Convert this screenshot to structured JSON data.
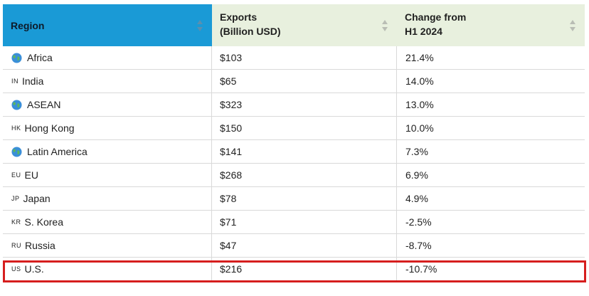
{
  "header": {
    "region_label": "Region",
    "exports_label_line1": "Exports",
    "exports_label_line2": "(Billion USD)",
    "change_label_line1": "Change from",
    "change_label_line2": "H1 2024"
  },
  "rows": [
    {
      "icon": "globe-icon",
      "code": "",
      "region": "Africa",
      "exports": "$103",
      "change": "21.4%"
    },
    {
      "icon": "flag-india-icon",
      "code": "IN",
      "region": "India",
      "exports": "$65",
      "change": "14.0%"
    },
    {
      "icon": "globe-icon",
      "code": "",
      "region": "ASEAN",
      "exports": "$323",
      "change": "13.0%"
    },
    {
      "icon": "flag-hong-kong-icon",
      "code": "HK",
      "region": "Hong Kong",
      "exports": "$150",
      "change": "10.0%"
    },
    {
      "icon": "globe-icon",
      "code": "",
      "region": "Latin America",
      "exports": "$141",
      "change": "7.3%"
    },
    {
      "icon": "flag-eu-icon",
      "code": "EU",
      "region": "EU",
      "exports": "$268",
      "change": "6.9%"
    },
    {
      "icon": "flag-japan-icon",
      "code": "JP",
      "region": "Japan",
      "exports": "$78",
      "change": "4.9%"
    },
    {
      "icon": "flag-south-korea-icon",
      "code": "KR",
      "region": "S. Korea",
      "exports": "$71",
      "change": "-2.5%"
    },
    {
      "icon": "flag-russia-icon",
      "code": "RU",
      "region": "Russia",
      "exports": "$47",
      "change": "-8.7%"
    },
    {
      "icon": "flag-us-icon",
      "code": "US",
      "region": "U.S.",
      "exports": "$216",
      "change": "-10.7%"
    }
  ],
  "colors": {
    "region_header_bg": "#1a9ad6",
    "other_header_bg": "#e8f0de",
    "highlight_border": "#d61e1e"
  }
}
